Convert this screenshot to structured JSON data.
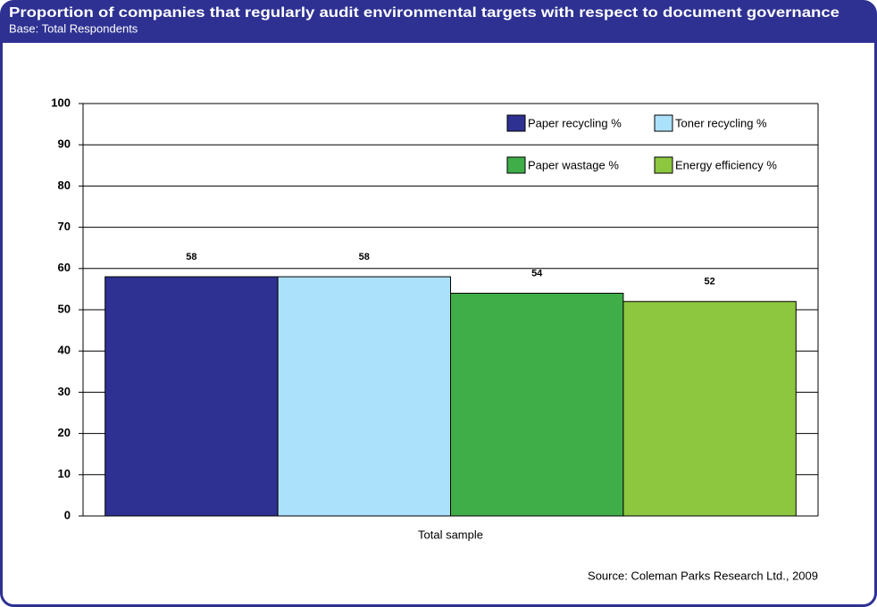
{
  "chart_data": {
    "type": "bar",
    "title": "Proportion of companies that regularly audit environmental targets with respect to document governance",
    "subtitle": "Base: Total Respondents",
    "source": "Source: Coleman Parks Research Ltd., 2009",
    "categories": [
      "Total sample"
    ],
    "series": [
      {
        "name": "Paper recycling %",
        "color": "#2e3192",
        "values": [
          58
        ]
      },
      {
        "name": "Toner recycling %",
        "color": "#abe1fa",
        "values": [
          58
        ]
      },
      {
        "name": "Paper wastage %",
        "color": "#3fae49",
        "values": [
          54
        ]
      },
      {
        "name": "Energy efficiency %",
        "color": "#8dc63f",
        "values": [
          52
        ]
      }
    ],
    "ylim": [
      0,
      100
    ],
    "yticks": [
      0,
      10,
      20,
      30,
      40,
      50,
      60,
      70,
      80,
      90,
      100
    ],
    "grid": true,
    "legend": "upper right"
  }
}
